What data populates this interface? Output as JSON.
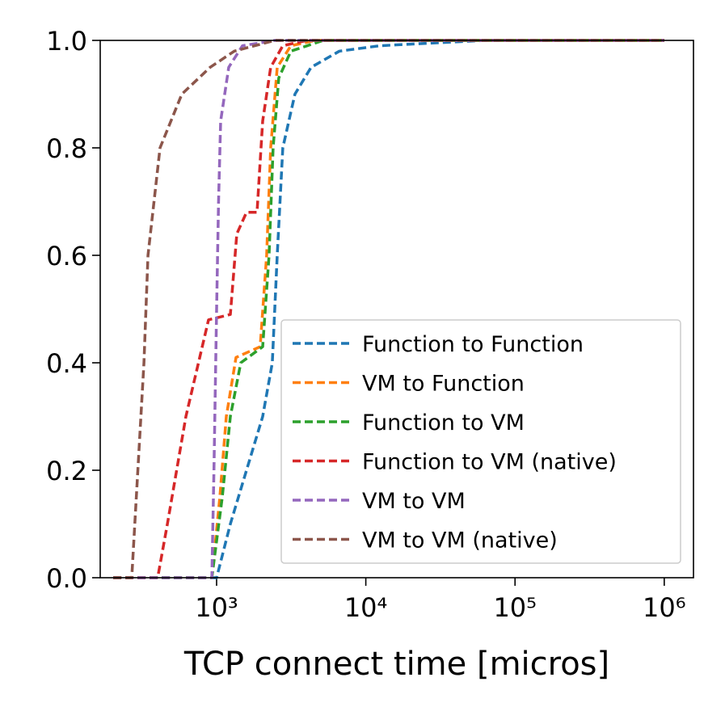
{
  "chart_data": {
    "type": "line",
    "xlabel": "TCP connect time [micros]",
    "xscale": "log",
    "xlim": [
      166,
      1570000
    ],
    "xticks": [
      {
        "value": 1000,
        "label": "10³"
      },
      {
        "value": 10000,
        "label": "10⁴"
      },
      {
        "value": 100000,
        "label": "10⁵"
      },
      {
        "value": 1000000,
        "label": "10⁶"
      }
    ],
    "ylim": [
      0,
      1
    ],
    "yticks": [
      {
        "value": 0,
        "label": "0.0"
      },
      0.2,
      0.4,
      0.6,
      0.8,
      {
        "value": 1,
        "label": "1.0"
      }
    ],
    "legend": "lower right",
    "series": [
      {
        "name": "Function to Function",
        "color": "#1f77b4",
        "x": [
          203,
          1000,
          1236,
          1587,
          2036,
          2362,
          2548,
          2779,
          3349,
          4299,
          6647,
          12400,
          62800,
          1000000
        ],
        "values": [
          0,
          0,
          0.1,
          0.2,
          0.3,
          0.4,
          0.6,
          0.8,
          0.9,
          0.95,
          0.98,
          0.99,
          1,
          1
        ]
      },
      {
        "name": "VM to Function",
        "color": "#ff7f0e",
        "x": [
          203,
          929,
          1051,
          1161,
          1349,
          1960,
          2166,
          2305,
          2548,
          3146,
          4577,
          1000000
        ],
        "values": [
          0,
          0,
          0.15,
          0.3,
          0.41,
          0.43,
          0.6,
          0.8,
          0.95,
          0.99,
          1,
          1
        ]
      },
      {
        "name": "Function to VM",
        "color": "#2ca02c",
        "x": [
          203,
          929,
          1091,
          1236,
          1453,
          2036,
          2248,
          2393,
          2611,
          3146,
          5189,
          1000000
        ],
        "values": [
          0,
          0,
          0.15,
          0.3,
          0.4,
          0.43,
          0.6,
          0.8,
          0.93,
          0.98,
          1,
          1
        ]
      },
      {
        "name": "Function to VM (native)",
        "color": "#d62728",
        "x": [
          203,
          403,
          468,
          623,
          883,
          1236,
          1366,
          1587,
          1865,
          2036,
          2305,
          2779,
          4040,
          1000000
        ],
        "values": [
          0,
          0,
          0.1,
          0.3,
          0.48,
          0.49,
          0.64,
          0.68,
          0.68,
          0.85,
          0.95,
          0.99,
          1,
          1
        ]
      },
      {
        "name": "VM to VM",
        "color": "#9467bd",
        "x": [
          203,
          929,
          960,
          1000,
          1030,
          1064,
          1206,
          1490,
          2455,
          1000000
        ],
        "values": [
          0,
          0,
          0.2,
          0.5,
          0.7,
          0.85,
          0.95,
          0.99,
          1,
          1
        ]
      },
      {
        "name": "VM to VM (native)",
        "color": "#8c564b",
        "x": [
          203,
          270,
          326,
          347,
          418,
          585,
          905,
          1315,
          2455,
          1000000
        ],
        "values": [
          0,
          0,
          0.4,
          0.6,
          0.8,
          0.9,
          0.95,
          0.98,
          1,
          1
        ]
      }
    ]
  }
}
